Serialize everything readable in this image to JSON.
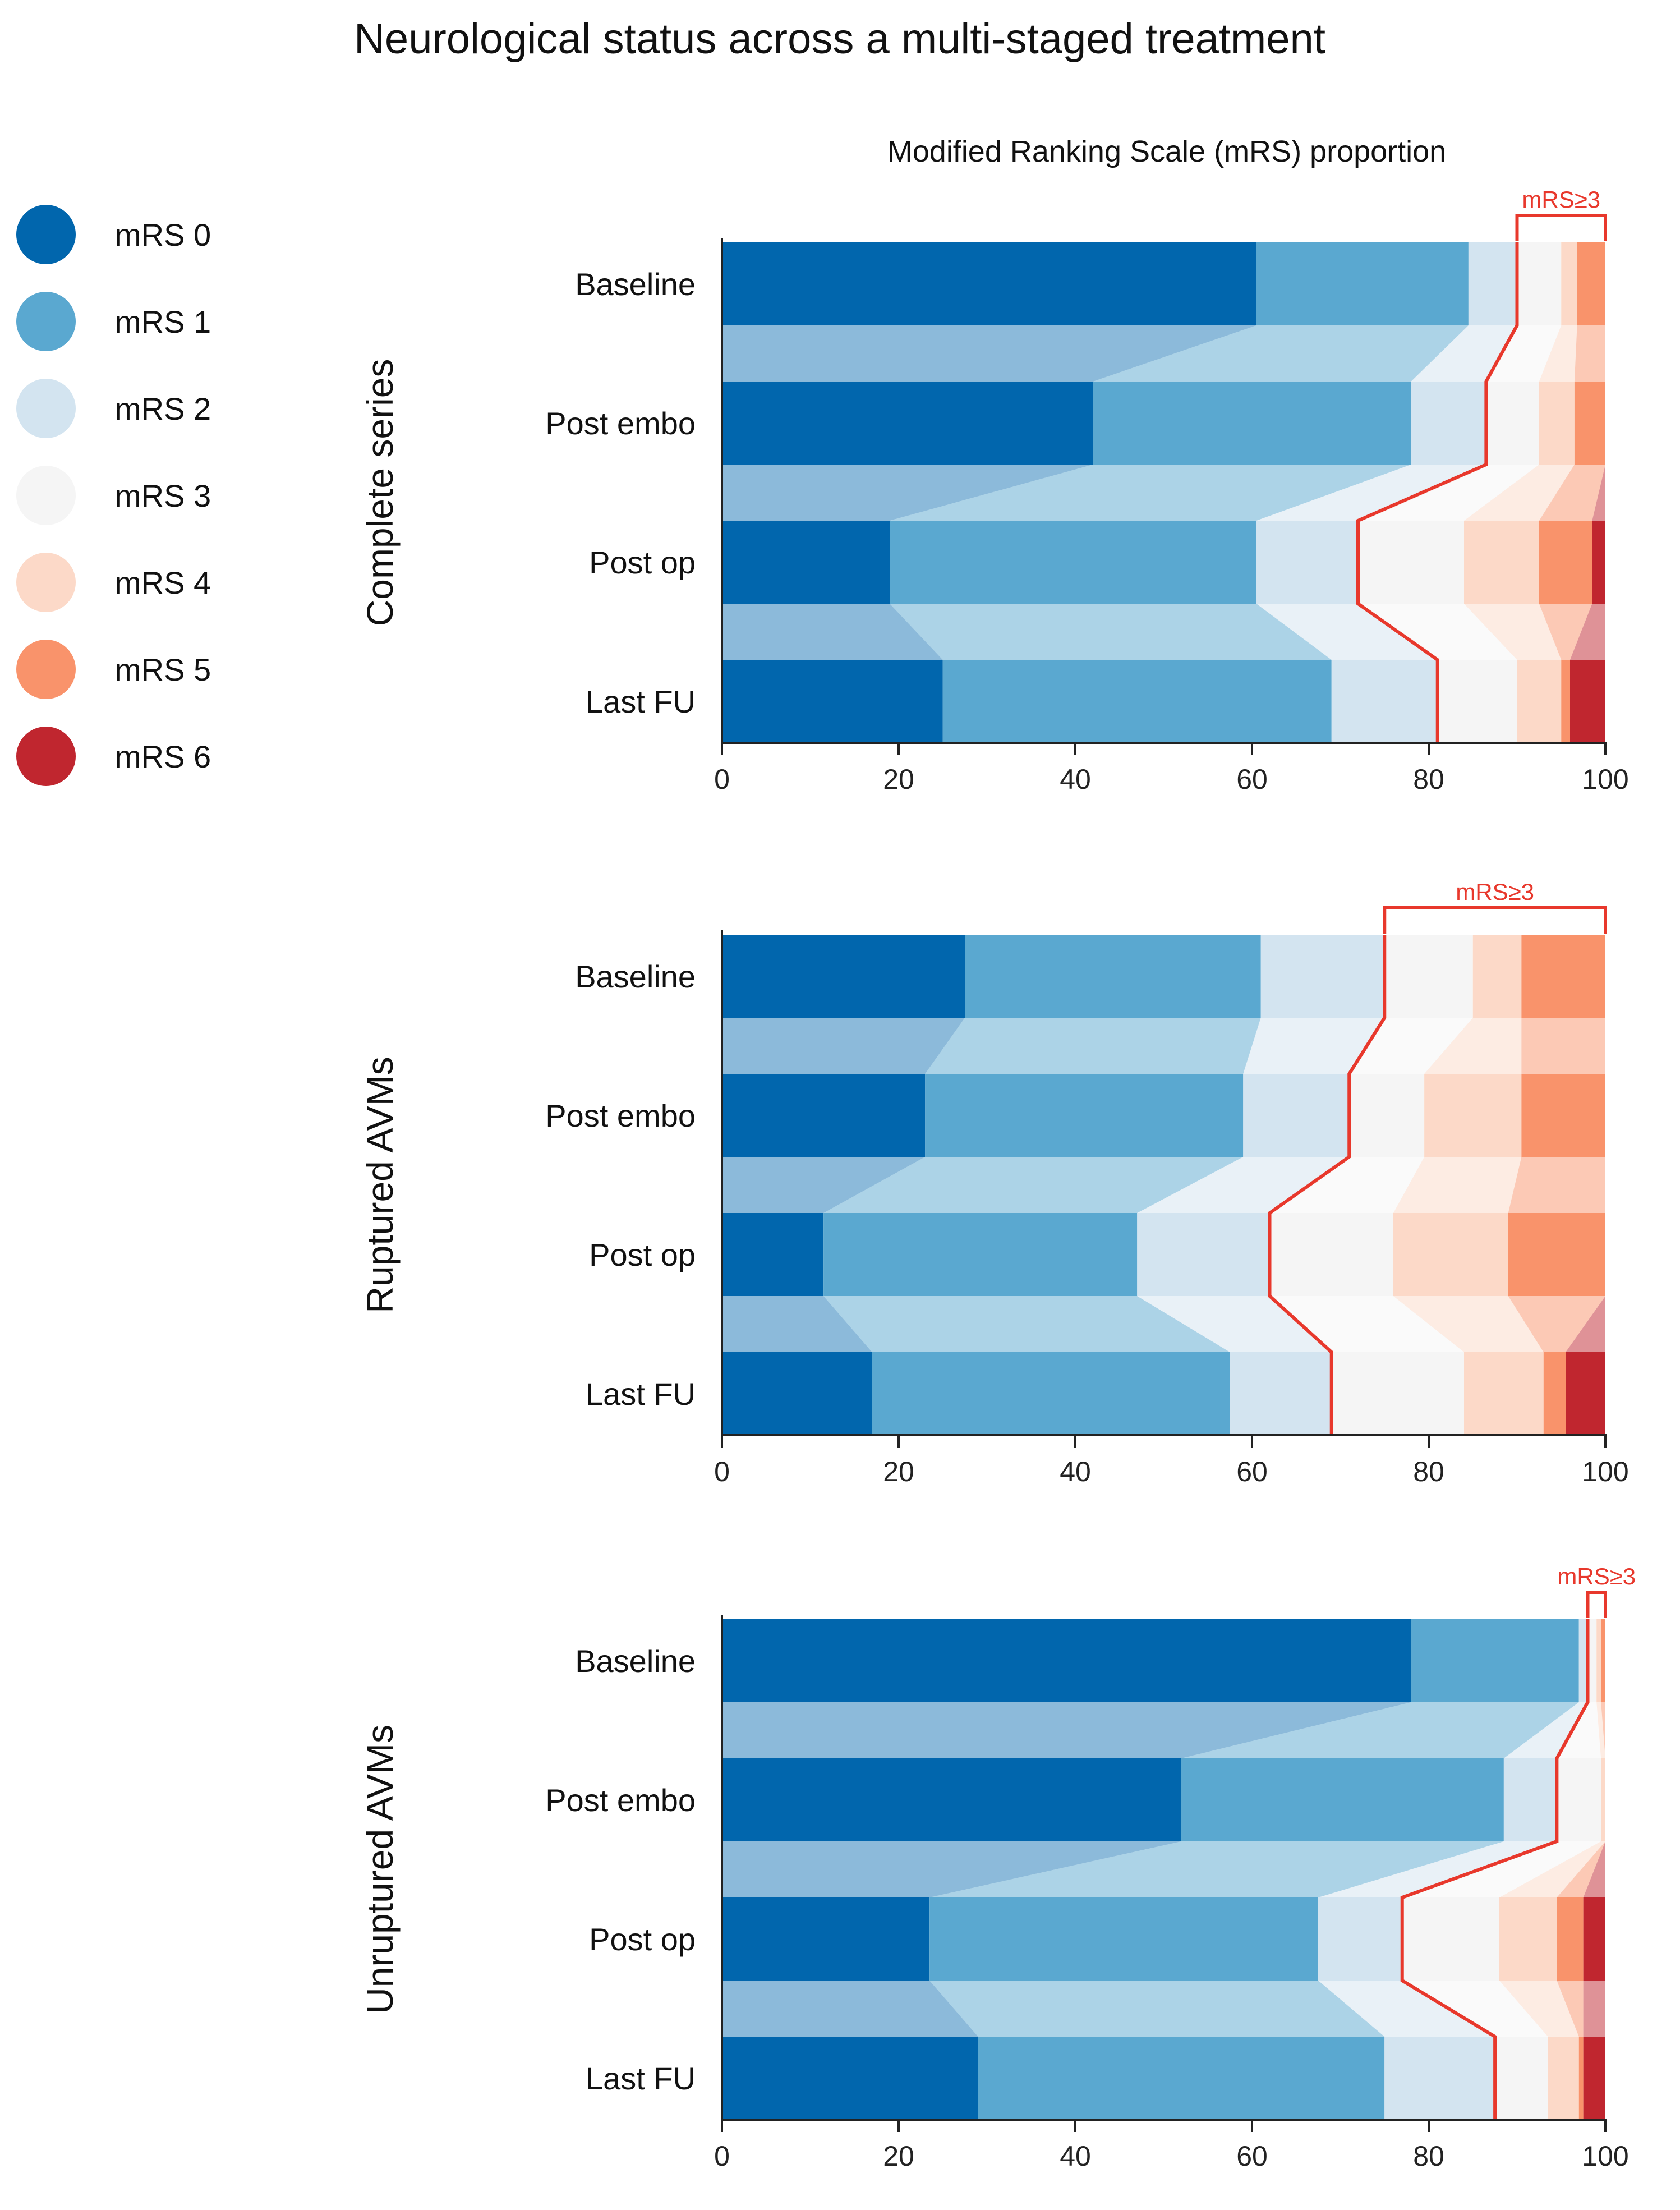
{
  "title": "Neurological status across a multi-staged treatment",
  "subtitle": "Modified Ranking Scale (mRS) proportion",
  "legend": [
    {
      "label": "mRS 0",
      "color": "#0166ad"
    },
    {
      "label": "mRS 1",
      "color": "#5aa8d0"
    },
    {
      "label": "mRS 2",
      "color": "#d3e4f0"
    },
    {
      "label": "mRS 3",
      "color": "#f5f5f5"
    },
    {
      "label": "mRS 4",
      "color": "#fcd9c8"
    },
    {
      "label": "mRS 5",
      "color": "#f9936b"
    },
    {
      "label": "mRS 6",
      "color": "#c0262f"
    }
  ],
  "threshold_color": "#e8382c",
  "chart_data": [
    {
      "type": "bar",
      "subtype": "stacked-horizontal-100",
      "group": "Complete series",
      "categories": [
        "Baseline",
        "Post embo",
        "Post op",
        "Last FU"
      ],
      "series": [
        {
          "name": "mRS 0",
          "values": [
            60.5,
            42,
            19,
            25
          ]
        },
        {
          "name": "mRS 1",
          "values": [
            24,
            36,
            41.5,
            44
          ]
        },
        {
          "name": "mRS 2",
          "values": [
            5.5,
            8.5,
            11.5,
            12
          ]
        },
        {
          "name": "mRS 3",
          "values": [
            5,
            6,
            12,
            9
          ]
        },
        {
          "name": "mRS 4",
          "values": [
            1.8,
            4,
            8.5,
            5
          ]
        },
        {
          "name": "mRS 5",
          "values": [
            3.2,
            3.5,
            6,
            1
          ]
        },
        {
          "name": "mRS 6",
          "values": [
            0,
            0,
            1.5,
            4
          ]
        }
      ],
      "threshold_label": "mRS≥3",
      "xlim": [
        0,
        100
      ],
      "xticks": [
        "0",
        "20",
        "40",
        "60",
        "80",
        "100"
      ]
    },
    {
      "type": "bar",
      "subtype": "stacked-horizontal-100",
      "group": "Ruptured AVMs",
      "categories": [
        "Baseline",
        "Post embo",
        "Post op",
        "Last FU"
      ],
      "series": [
        {
          "name": "mRS 0",
          "values": [
            27.5,
            23,
            11.5,
            17
          ]
        },
        {
          "name": "mRS 1",
          "values": [
            33.5,
            36,
            35.5,
            40.5
          ]
        },
        {
          "name": "mRS 2",
          "values": [
            14,
            12,
            15,
            11.5
          ]
        },
        {
          "name": "mRS 3",
          "values": [
            10,
            8.5,
            14,
            15
          ]
        },
        {
          "name": "mRS 4",
          "values": [
            5.5,
            11,
            13,
            9
          ]
        },
        {
          "name": "mRS 5",
          "values": [
            9.5,
            9.5,
            11,
            2.5
          ]
        },
        {
          "name": "mRS 6",
          "values": [
            0,
            0,
            0,
            4.5
          ]
        }
      ],
      "threshold_label": "mRS≥3",
      "xlim": [
        0,
        100
      ],
      "xticks": [
        "0",
        "20",
        "40",
        "60",
        "80",
        "100"
      ]
    },
    {
      "type": "bar",
      "subtype": "stacked-horizontal-100",
      "group": "Unruptured AVMs",
      "categories": [
        "Baseline",
        "Post embo",
        "Post op",
        "Last FU"
      ],
      "series": [
        {
          "name": "mRS 0",
          "values": [
            78,
            52,
            23.5,
            29
          ]
        },
        {
          "name": "mRS 1",
          "values": [
            19,
            36.5,
            44,
            46
          ]
        },
        {
          "name": "mRS 2",
          "values": [
            1,
            6,
            9.5,
            12.5
          ]
        },
        {
          "name": "mRS 3",
          "values": [
            1,
            5,
            11,
            6
          ]
        },
        {
          "name": "mRS 4",
          "values": [
            0.5,
            0.5,
            6.5,
            3.5
          ]
        },
        {
          "name": "mRS 5",
          "values": [
            0.5,
            0,
            3,
            0.5
          ]
        },
        {
          "name": "mRS 6",
          "values": [
            0,
            0,
            2.5,
            2.5
          ]
        }
      ],
      "threshold_label": "mRS≥3",
      "xlim": [
        0,
        100
      ],
      "xticks": [
        "0",
        "20",
        "40",
        "60",
        "80",
        "100"
      ]
    }
  ]
}
